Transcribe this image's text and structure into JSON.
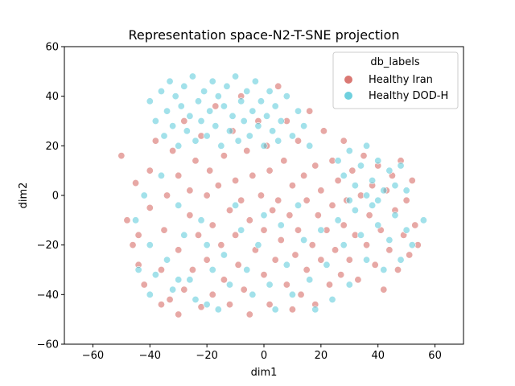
{
  "chart_data": {
    "type": "scatter",
    "title": "Representation space-N2-T-SNE projection",
    "xlabel": "dim1",
    "ylabel": "dim2",
    "xlim": [
      -70,
      70
    ],
    "ylim": [
      -60,
      60
    ],
    "xticks": [
      -60,
      -40,
      -20,
      0,
      20,
      40,
      60
    ],
    "yticks": [
      -60,
      -40,
      -20,
      0,
      20,
      40,
      60
    ],
    "grid": false,
    "legend": {
      "title": "db_labels",
      "placement": "top-right",
      "entries": [
        {
          "label": "Healthy Iran",
          "color": "#d4605b"
        },
        {
          "label": "Healthy DOD-H",
          "color": "#56c8d8"
        }
      ]
    },
    "series": [
      {
        "name": "Healthy Iran",
        "color": "#d4605b",
        "points": [
          [
            -50,
            16
          ],
          [
            -48,
            -10
          ],
          [
            -46,
            -20
          ],
          [
            -45,
            5
          ],
          [
            -44,
            -28
          ],
          [
            -42,
            -36
          ],
          [
            -40,
            10
          ],
          [
            -40,
            -5
          ],
          [
            -38,
            22
          ],
          [
            -36,
            -30
          ],
          [
            -35,
            -14
          ],
          [
            -34,
            0
          ],
          [
            -33,
            -42
          ],
          [
            -32,
            18
          ],
          [
            -30,
            -22
          ],
          [
            -30,
            8
          ],
          [
            -28,
            -38
          ],
          [
            -28,
            30
          ],
          [
            -26,
            -8
          ],
          [
            -26,
            2
          ],
          [
            -25,
            -30
          ],
          [
            -24,
            14
          ],
          [
            -23,
            -16
          ],
          [
            -22,
            -45
          ],
          [
            -22,
            24
          ],
          [
            -20,
            0
          ],
          [
            -20,
            -26
          ],
          [
            -19,
            10
          ],
          [
            -18,
            -40
          ],
          [
            -18,
            -12
          ],
          [
            -17,
            36
          ],
          [
            -16,
            4
          ],
          [
            -15,
            -20
          ],
          [
            -14,
            -34
          ],
          [
            -14,
            16
          ],
          [
            -12,
            -6
          ],
          [
            -12,
            -44
          ],
          [
            -11,
            26
          ],
          [
            -10,
            -16
          ],
          [
            -10,
            6
          ],
          [
            -9,
            -28
          ],
          [
            -8,
            40
          ],
          [
            -8,
            -2
          ],
          [
            -7,
            -38
          ],
          [
            -6,
            18
          ],
          [
            -5,
            -10
          ],
          [
            -5,
            -48
          ],
          [
            -4,
            8
          ],
          [
            -3,
            -22
          ],
          [
            -2,
            30
          ],
          [
            -1,
            0
          ],
          [
            0,
            -32
          ],
          [
            0,
            -14
          ],
          [
            1,
            20
          ],
          [
            2,
            -44
          ],
          [
            2,
            10
          ],
          [
            3,
            -6
          ],
          [
            4,
            -26
          ],
          [
            5,
            44
          ],
          [
            5,
            -2
          ],
          [
            6,
            -18
          ],
          [
            7,
            14
          ],
          [
            8,
            -36
          ],
          [
            8,
            30
          ],
          [
            9,
            -8
          ],
          [
            10,
            -46
          ],
          [
            10,
            4
          ],
          [
            11,
            -24
          ],
          [
            12,
            22
          ],
          [
            12,
            -14
          ],
          [
            13,
            -40
          ],
          [
            14,
            8
          ],
          [
            15,
            -2
          ],
          [
            15,
            -30
          ],
          [
            16,
            34
          ],
          [
            17,
            -20
          ],
          [
            18,
            12
          ],
          [
            18,
            -44
          ],
          [
            19,
            -8
          ],
          [
            20,
            2
          ],
          [
            20,
            -26
          ],
          [
            21,
            26
          ],
          [
            22,
            -14
          ],
          [
            23,
            -36
          ],
          [
            24,
            14
          ],
          [
            24,
            -4
          ],
          [
            25,
            -22
          ],
          [
            26,
            6
          ],
          [
            27,
            -32
          ],
          [
            28,
            -12
          ],
          [
            28,
            22
          ],
          [
            29,
            -2
          ],
          [
            30,
            -26
          ],
          [
            31,
            10
          ],
          [
            32,
            -16
          ],
          [
            33,
            -34
          ],
          [
            34,
            0
          ],
          [
            35,
            16
          ],
          [
            36,
            -20
          ],
          [
            37,
            -8
          ],
          [
            38,
            4
          ],
          [
            39,
            -28
          ],
          [
            40,
            12
          ],
          [
            41,
            -14
          ],
          [
            42,
            -38
          ],
          [
            43,
            2
          ],
          [
            44,
            -22
          ],
          [
            45,
            8
          ],
          [
            46,
            -6
          ],
          [
            47,
            -30
          ],
          [
            48,
            14
          ],
          [
            49,
            -16
          ],
          [
            50,
            -2
          ],
          [
            51,
            -24
          ],
          [
            52,
            6
          ],
          [
            53,
            -12
          ],
          [
            54,
            -20
          ],
          [
            -36,
            -44
          ],
          [
            -30,
            -48
          ],
          [
            -44,
            -16
          ]
        ]
      },
      {
        "name": "Healthy DOD-H",
        "color": "#56c8d8",
        "points": [
          [
            -40,
            38
          ],
          [
            -38,
            30
          ],
          [
            -36,
            42
          ],
          [
            -35,
            24
          ],
          [
            -34,
            34
          ],
          [
            -33,
            46
          ],
          [
            -32,
            28
          ],
          [
            -31,
            40
          ],
          [
            -30,
            20
          ],
          [
            -29,
            36
          ],
          [
            -28,
            44
          ],
          [
            -27,
            26
          ],
          [
            -26,
            32
          ],
          [
            -25,
            48
          ],
          [
            -24,
            22
          ],
          [
            -23,
            38
          ],
          [
            -22,
            30
          ],
          [
            -21,
            42
          ],
          [
            -20,
            24
          ],
          [
            -19,
            34
          ],
          [
            -18,
            46
          ],
          [
            -17,
            28
          ],
          [
            -16,
            40
          ],
          [
            -15,
            20
          ],
          [
            -14,
            36
          ],
          [
            -13,
            44
          ],
          [
            -12,
            26
          ],
          [
            -11,
            32
          ],
          [
            -10,
            48
          ],
          [
            -9,
            22
          ],
          [
            -8,
            38
          ],
          [
            -7,
            30
          ],
          [
            -6,
            42
          ],
          [
            -5,
            24
          ],
          [
            -4,
            34
          ],
          [
            -3,
            46
          ],
          [
            -2,
            28
          ],
          [
            -1,
            38
          ],
          [
            0,
            20
          ],
          [
            1,
            32
          ],
          [
            2,
            42
          ],
          [
            3,
            26
          ],
          [
            4,
            36
          ],
          [
            5,
            22
          ],
          [
            6,
            30
          ],
          [
            8,
            40
          ],
          [
            10,
            24
          ],
          [
            12,
            34
          ],
          [
            14,
            28
          ],
          [
            16,
            20
          ],
          [
            -45,
            -10
          ],
          [
            -42,
            0
          ],
          [
            -40,
            -20
          ],
          [
            -38,
            -32
          ],
          [
            -36,
            8
          ],
          [
            -34,
            -26
          ],
          [
            -32,
            -38
          ],
          [
            -30,
            -4
          ],
          [
            -28,
            -16
          ],
          [
            -26,
            -34
          ],
          [
            -24,
            -42
          ],
          [
            -22,
            -10
          ],
          [
            -20,
            -20
          ],
          [
            -18,
            -30
          ],
          [
            -16,
            -46
          ],
          [
            -14,
            -24
          ],
          [
            -12,
            -36
          ],
          [
            -10,
            -4
          ],
          [
            -8,
            -14
          ],
          [
            -6,
            -30
          ],
          [
            -4,
            -40
          ],
          [
            -2,
            -20
          ],
          [
            0,
            -8
          ],
          [
            2,
            -36
          ],
          [
            4,
            -46
          ],
          [
            6,
            -12
          ],
          [
            8,
            -28
          ],
          [
            10,
            -40
          ],
          [
            12,
            -4
          ],
          [
            14,
            -18
          ],
          [
            16,
            -34
          ],
          [
            18,
            -46
          ],
          [
            20,
            -14
          ],
          [
            22,
            -28
          ],
          [
            24,
            -42
          ],
          [
            26,
            -10
          ],
          [
            28,
            -20
          ],
          [
            30,
            -36
          ],
          [
            32,
            -6
          ],
          [
            34,
            -16
          ],
          [
            36,
            -26
          ],
          [
            38,
            -4
          ],
          [
            40,
            -12
          ],
          [
            42,
            -30
          ],
          [
            44,
            -18
          ],
          [
            46,
            -8
          ],
          [
            48,
            -26
          ],
          [
            50,
            -14
          ],
          [
            52,
            -20
          ],
          [
            56,
            -10
          ],
          [
            26,
            14
          ],
          [
            28,
            8
          ],
          [
            30,
            18
          ],
          [
            32,
            4
          ],
          [
            34,
            12
          ],
          [
            36,
            20
          ],
          [
            38,
            6
          ],
          [
            40,
            14
          ],
          [
            42,
            2
          ],
          [
            44,
            10
          ],
          [
            46,
            4
          ],
          [
            48,
            12
          ],
          [
            50,
            2
          ],
          [
            30,
            -2
          ],
          [
            36,
            0
          ],
          [
            40,
            -2
          ],
          [
            -44,
            -30
          ],
          [
            -40,
            -40
          ],
          [
            -30,
            -34
          ],
          [
            -20,
            -44
          ]
        ]
      }
    ]
  }
}
